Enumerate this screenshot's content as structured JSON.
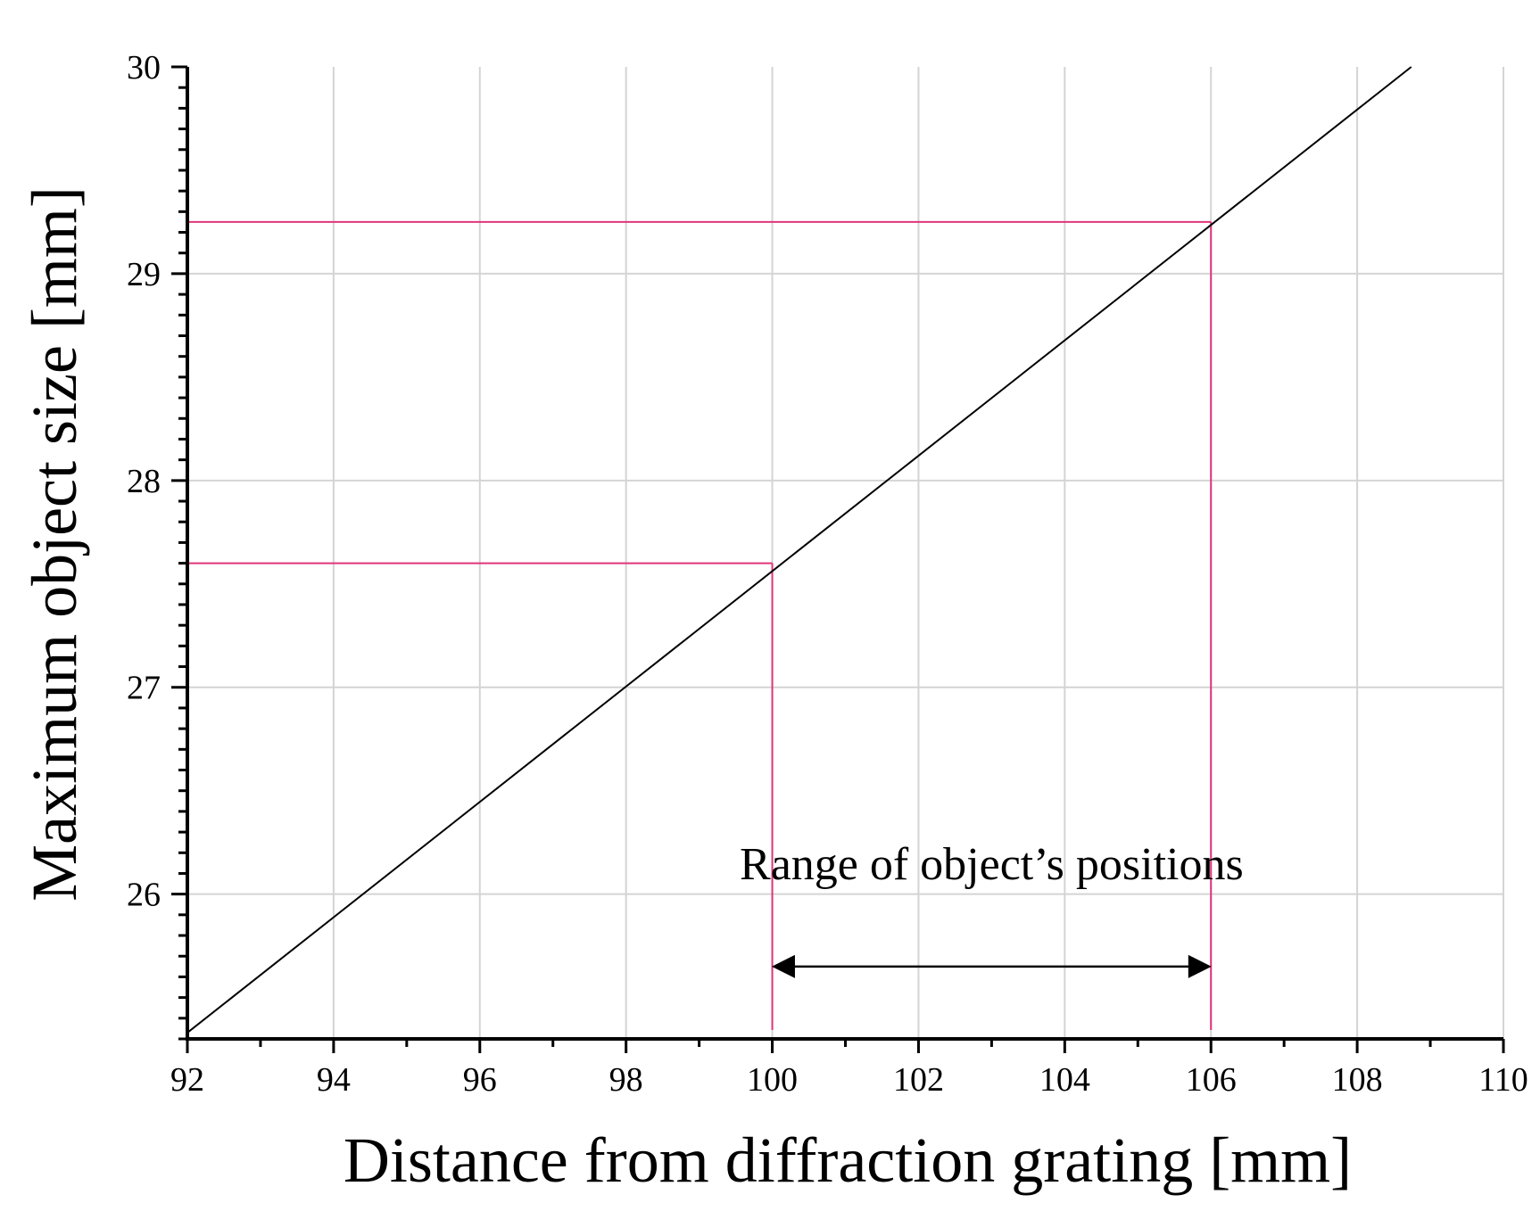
{
  "chart_data": {
    "type": "line",
    "title": "",
    "xlabel": "Distance from diffraction grating [mm]",
    "ylabel": "Maximum object size [mm]",
    "xlim": [
      92,
      110
    ],
    "ylim": [
      25.3,
      30
    ],
    "x_ticks": [
      92,
      94,
      96,
      98,
      100,
      102,
      104,
      106,
      108,
      110
    ],
    "x_tick_labels": [
      "92",
      "94",
      "96",
      "98",
      "100",
      "102",
      "104",
      "106",
      "108",
      "110"
    ],
    "x_minor_step": 1,
    "y_ticks": [
      26,
      27,
      28,
      29,
      30
    ],
    "y_tick_labels": [
      "26",
      "27",
      "28",
      "29",
      "30"
    ],
    "y_minor_step": 0.1,
    "grid": true,
    "series": [
      {
        "name": "Maximum object size",
        "color": "#000000",
        "x": [
          92,
          108.74
        ],
        "y": [
          25.33,
          30.0
        ]
      }
    ],
    "reference_lines": [
      {
        "name": "ref-100",
        "color": "#e0357a",
        "x": 100,
        "y": 27.6
      },
      {
        "name": "ref-106",
        "color": "#e0357a",
        "x": 106,
        "y": 29.25
      }
    ],
    "annotation": {
      "text": "Range of object’s positions",
      "x_from": 100,
      "x_to": 106,
      "arrow_y": 25.65,
      "text_x": 103,
      "text_y": 26.15
    }
  }
}
